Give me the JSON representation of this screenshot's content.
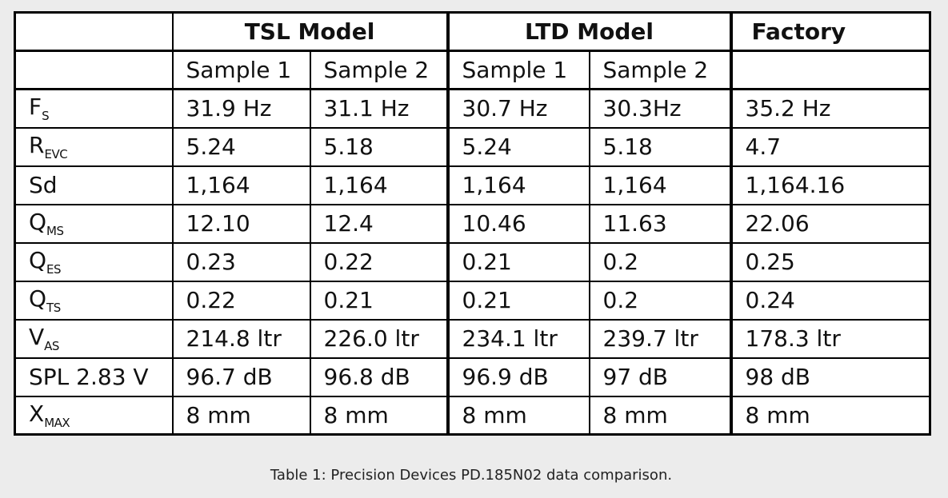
{
  "table": {
    "group_headers": [
      "",
      "TSL Model",
      "LTD Model",
      "Factory"
    ],
    "sub_headers": [
      "",
      "Sample 1",
      "Sample 2",
      "Sample 1",
      "Sample 2",
      ""
    ],
    "rows": [
      {
        "param_main": "F",
        "param_sub": "S",
        "values": [
          "31.9 Hz",
          "31.1 Hz",
          "30.7 Hz",
          "30.3Hz",
          "35.2 Hz"
        ]
      },
      {
        "param_main": "R",
        "param_sub": "EVC",
        "values": [
          "5.24",
          "5.18",
          "5.24",
          "5.18",
          "4.7"
        ]
      },
      {
        "param_main": "Sd",
        "param_sub": "",
        "values": [
          "1,164",
          "1,164",
          "1,164",
          "1,164",
          "1,164.16"
        ]
      },
      {
        "param_main": "Q",
        "param_sub": "MS",
        "values": [
          "12.10",
          "12.4",
          "10.46",
          "11.63",
          "22.06"
        ]
      },
      {
        "param_main": "Q",
        "param_sub": "ES",
        "values": [
          "0.23",
          "0.22",
          "0.21",
          "0.2",
          "0.25"
        ]
      },
      {
        "param_main": "Q",
        "param_sub": "TS",
        "values": [
          "0.22",
          "0.21",
          "0.21",
          "0.2",
          "0.24"
        ]
      },
      {
        "param_main": "V",
        "param_sub": "AS",
        "values": [
          "214.8 ltr",
          "226.0 ltr",
          "234.1 ltr",
          "239.7 ltr",
          "178.3 ltr"
        ]
      },
      {
        "param_main": "SPL 2.83 V",
        "param_sub": "",
        "values": [
          "96.7 dB",
          "96.8 dB",
          "96.9 dB",
          "97 dB",
          "98 dB"
        ]
      },
      {
        "param_main": "X",
        "param_sub": "MAX",
        "values": [
          "8 mm",
          "8 mm",
          "8 mm",
          "8 mm",
          "8 mm"
        ]
      }
    ]
  },
  "caption": "Table 1: Precision Devices PD.185N02 data comparison."
}
